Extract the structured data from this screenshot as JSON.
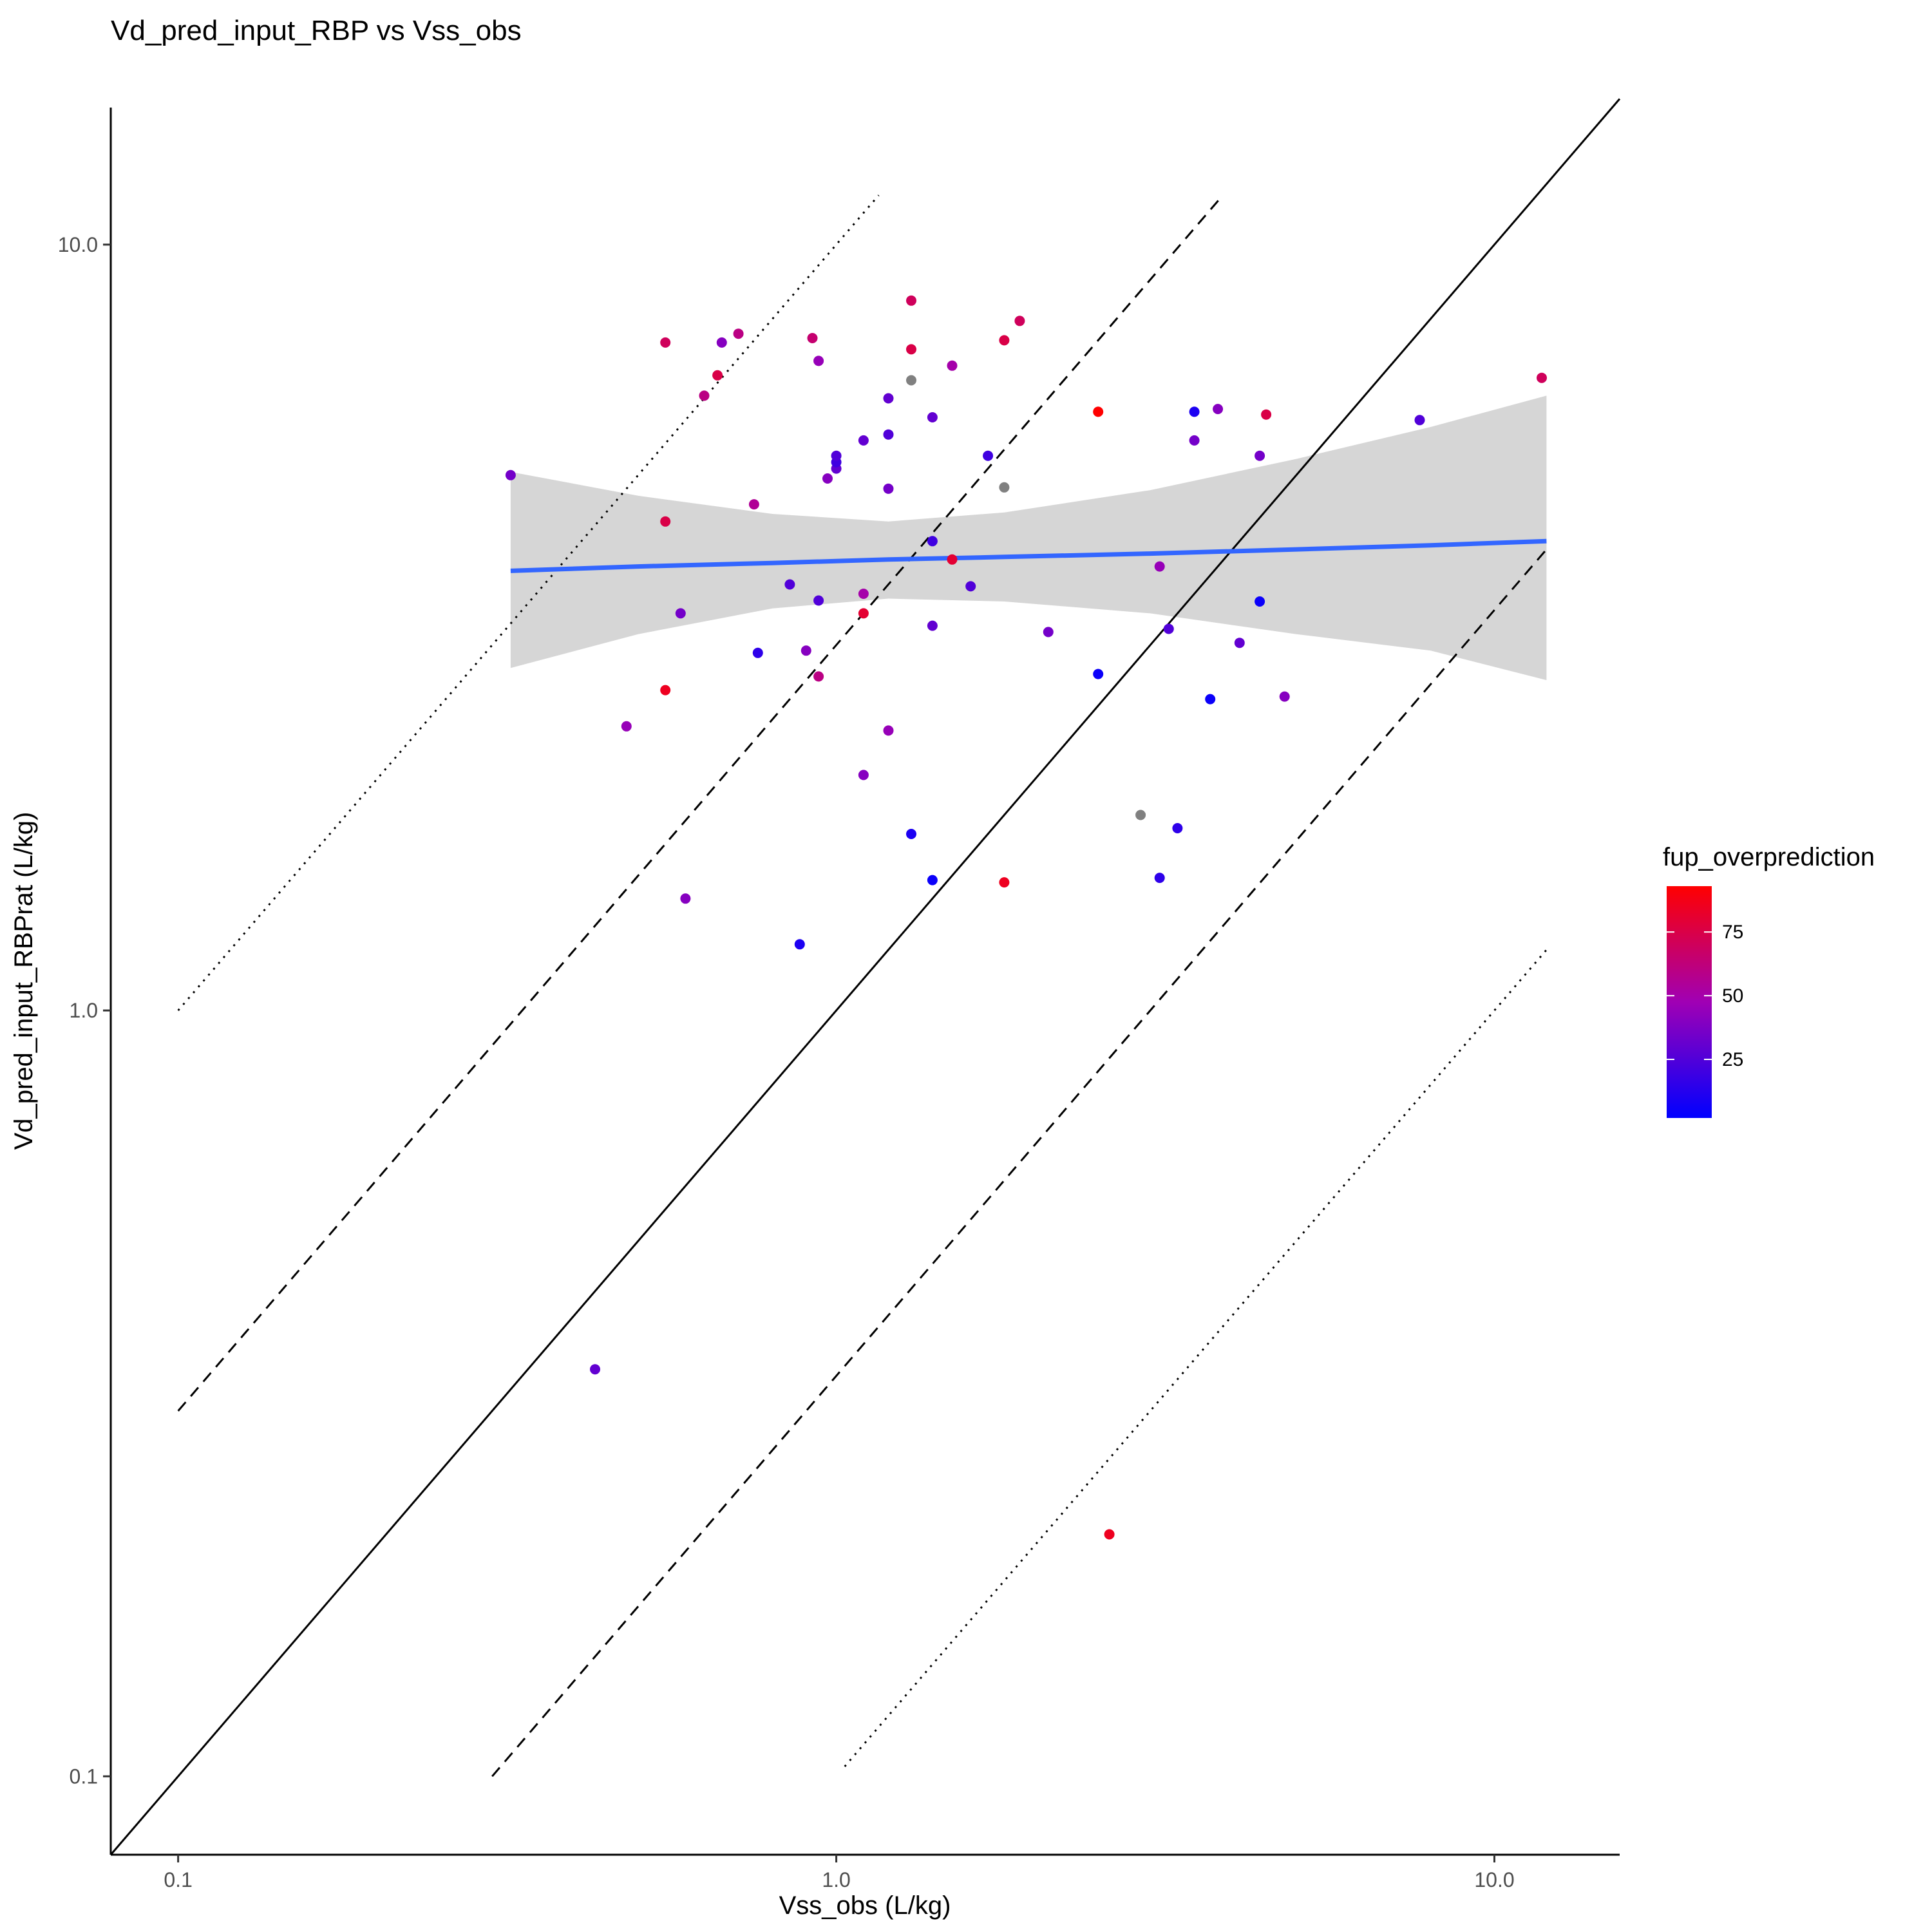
{
  "chart_data": {
    "type": "scatter",
    "title": "Vd_pred_input_RBP vs Vss_obs",
    "xlabel": "Vss_obs (L/kg)",
    "ylabel": "Vd_pred_input_RBPrat (L/kg)",
    "x_scale": "log",
    "y_scale": "log",
    "xlim": [
      0.079,
      15.5
    ],
    "ylim": [
      0.079,
      15.1
    ],
    "x_ticks": [
      {
        "value": 0.1,
        "label": "0.1"
      },
      {
        "value": 1,
        "label": "1.0"
      },
      {
        "value": 10,
        "label": "10.0"
      }
    ],
    "y_ticks": [
      {
        "value": 0.1,
        "label": "0.1"
      },
      {
        "value": 1,
        "label": "1.0"
      },
      {
        "value": 10,
        "label": "10.0"
      }
    ],
    "grid": false,
    "legend": {
      "title": "fup_overprediction",
      "position": "right",
      "type": "colorbar",
      "range": [
        2,
        93
      ],
      "ticks": [
        {
          "value": 25,
          "label": "25"
        },
        {
          "value": 50,
          "label": "50"
        },
        {
          "value": 75,
          "label": "75"
        }
      ],
      "low_color": "#0000FF",
      "mid_color": "#A000B4",
      "high_color": "#FF0000",
      "na_color": "#808080"
    },
    "reference_lines": [
      {
        "style": "solid",
        "fold": 1,
        "x_range": [
          0.079,
          15.5
        ]
      },
      {
        "style": "dashed",
        "fold": 3,
        "x_range": [
          0.1,
          3.85
        ]
      },
      {
        "style": "dashed",
        "fold": 0.3333,
        "x_range": [
          0.3,
          12
        ]
      },
      {
        "style": "dotted",
        "fold": 10,
        "x_range": [
          0.1,
          1.16
        ]
      },
      {
        "style": "dotted",
        "fold": 0.1,
        "x_range": [
          1.03,
          12
        ]
      }
    ],
    "trend": {
      "color": "#3366FF",
      "band_color": "#D6D6D6",
      "x": [
        0.32,
        0.5,
        0.8,
        1.2,
        1.8,
        3,
        5,
        8,
        12
      ],
      "y": [
        3.75,
        3.8,
        3.84,
        3.88,
        3.91,
        3.95,
        4.0,
        4.05,
        4.1
      ],
      "lower": [
        2.8,
        3.1,
        3.35,
        3.45,
        3.42,
        3.3,
        3.1,
        2.95,
        2.7
      ],
      "upper": [
        5.05,
        4.7,
        4.45,
        4.35,
        4.47,
        4.78,
        5.25,
        5.78,
        6.35
      ]
    },
    "points": [
      {
        "x": 0.32,
        "y": 5.0,
        "fup": 35
      },
      {
        "x": 0.43,
        "y": 0.34,
        "fup": 30
      },
      {
        "x": 0.48,
        "y": 2.35,
        "fup": 45
      },
      {
        "x": 0.55,
        "y": 7.45,
        "fup": 70
      },
      {
        "x": 0.55,
        "y": 4.35,
        "fup": 75
      },
      {
        "x": 0.55,
        "y": 2.62,
        "fup": 85
      },
      {
        "x": 0.58,
        "y": 3.3,
        "fup": 35
      },
      {
        "x": 0.59,
        "y": 1.4,
        "fup": 40
      },
      {
        "x": 0.63,
        "y": 6.35,
        "fup": 60
      },
      {
        "x": 0.66,
        "y": 6.75,
        "fup": 75
      },
      {
        "x": 0.67,
        "y": 7.45,
        "fup": 40
      },
      {
        "x": 0.71,
        "y": 7.65,
        "fup": 60
      },
      {
        "x": 0.75,
        "y": 4.58,
        "fup": 55
      },
      {
        "x": 0.76,
        "y": 2.93,
        "fup": 15
      },
      {
        "x": 0.85,
        "y": 3.6,
        "fup": 25
      },
      {
        "x": 0.88,
        "y": 1.22,
        "fup": 10
      },
      {
        "x": 0.9,
        "y": 2.95,
        "fup": 40
      },
      {
        "x": 0.92,
        "y": 7.55,
        "fup": 65
      },
      {
        "x": 0.94,
        "y": 7.05,
        "fup": 45
      },
      {
        "x": 0.94,
        "y": 3.43,
        "fup": 25
      },
      {
        "x": 0.94,
        "y": 2.73,
        "fup": 60
      },
      {
        "x": 0.97,
        "y": 4.95,
        "fup": 40
      },
      {
        "x": 1.0,
        "y": 5.1,
        "fup": 30
      },
      {
        "x": 1.0,
        "y": 5.2,
        "fup": 20
      },
      {
        "x": 1.0,
        "y": 5.3,
        "fup": 25
      },
      {
        "x": 1.1,
        "y": 5.55,
        "fup": 30
      },
      {
        "x": 1.1,
        "y": 3.5,
        "fup": 50
      },
      {
        "x": 1.1,
        "y": 3.3,
        "fup": 80
      },
      {
        "x": 1.1,
        "y": 2.03,
        "fup": 40
      },
      {
        "x": 1.2,
        "y": 6.3,
        "fup": 30
      },
      {
        "x": 1.2,
        "y": 5.65,
        "fup": 25
      },
      {
        "x": 1.2,
        "y": 4.8,
        "fup": 35
      },
      {
        "x": 1.2,
        "y": 2.32,
        "fup": 45
      },
      {
        "x": 1.3,
        "y": 8.45,
        "fup": 70
      },
      {
        "x": 1.3,
        "y": 7.3,
        "fup": 75
      },
      {
        "x": 1.3,
        "y": 6.65,
        "fup": null
      },
      {
        "x": 1.3,
        "y": 1.7,
        "fup": 10
      },
      {
        "x": 1.4,
        "y": 5.95,
        "fup": 30
      },
      {
        "x": 1.4,
        "y": 4.1,
        "fup": 20
      },
      {
        "x": 1.4,
        "y": 3.18,
        "fup": 30
      },
      {
        "x": 1.4,
        "y": 1.48,
        "fup": 5
      },
      {
        "x": 1.5,
        "y": 3.88,
        "fup": 80
      },
      {
        "x": 1.5,
        "y": 6.95,
        "fup": 50
      },
      {
        "x": 1.6,
        "y": 3.58,
        "fup": 25
      },
      {
        "x": 1.7,
        "y": 5.3,
        "fup": 20
      },
      {
        "x": 1.8,
        "y": 7.5,
        "fup": 75
      },
      {
        "x": 1.8,
        "y": 4.82,
        "fup": null
      },
      {
        "x": 1.8,
        "y": 1.47,
        "fup": 85
      },
      {
        "x": 1.9,
        "y": 7.95,
        "fup": 70
      },
      {
        "x": 2.1,
        "y": 3.12,
        "fup": 35
      },
      {
        "x": 2.5,
        "y": 6.05,
        "fup": 93
      },
      {
        "x": 2.5,
        "y": 2.75,
        "fup": 5
      },
      {
        "x": 2.6,
        "y": 0.207,
        "fup": 85
      },
      {
        "x": 2.9,
        "y": 1.8,
        "fup": null
      },
      {
        "x": 3.1,
        "y": 3.8,
        "fup": 45
      },
      {
        "x": 3.1,
        "y": 1.49,
        "fup": 15
      },
      {
        "x": 3.2,
        "y": 3.15,
        "fup": 25
      },
      {
        "x": 3.3,
        "y": 1.73,
        "fup": 15
      },
      {
        "x": 3.5,
        "y": 6.05,
        "fup": 10
      },
      {
        "x": 3.5,
        "y": 5.55,
        "fup": 35
      },
      {
        "x": 3.7,
        "y": 2.55,
        "fup": 5
      },
      {
        "x": 3.8,
        "y": 6.1,
        "fup": 40
      },
      {
        "x": 4.1,
        "y": 3.02,
        "fup": 30
      },
      {
        "x": 4.4,
        "y": 5.3,
        "fup": 35
      },
      {
        "x": 4.4,
        "y": 3.42,
        "fup": 5
      },
      {
        "x": 4.5,
        "y": 6.0,
        "fup": 75
      },
      {
        "x": 4.8,
        "y": 2.57,
        "fup": 40
      },
      {
        "x": 7.7,
        "y": 5.9,
        "fup": 25
      },
      {
        "x": 11.8,
        "y": 6.7,
        "fup": 70
      }
    ]
  }
}
